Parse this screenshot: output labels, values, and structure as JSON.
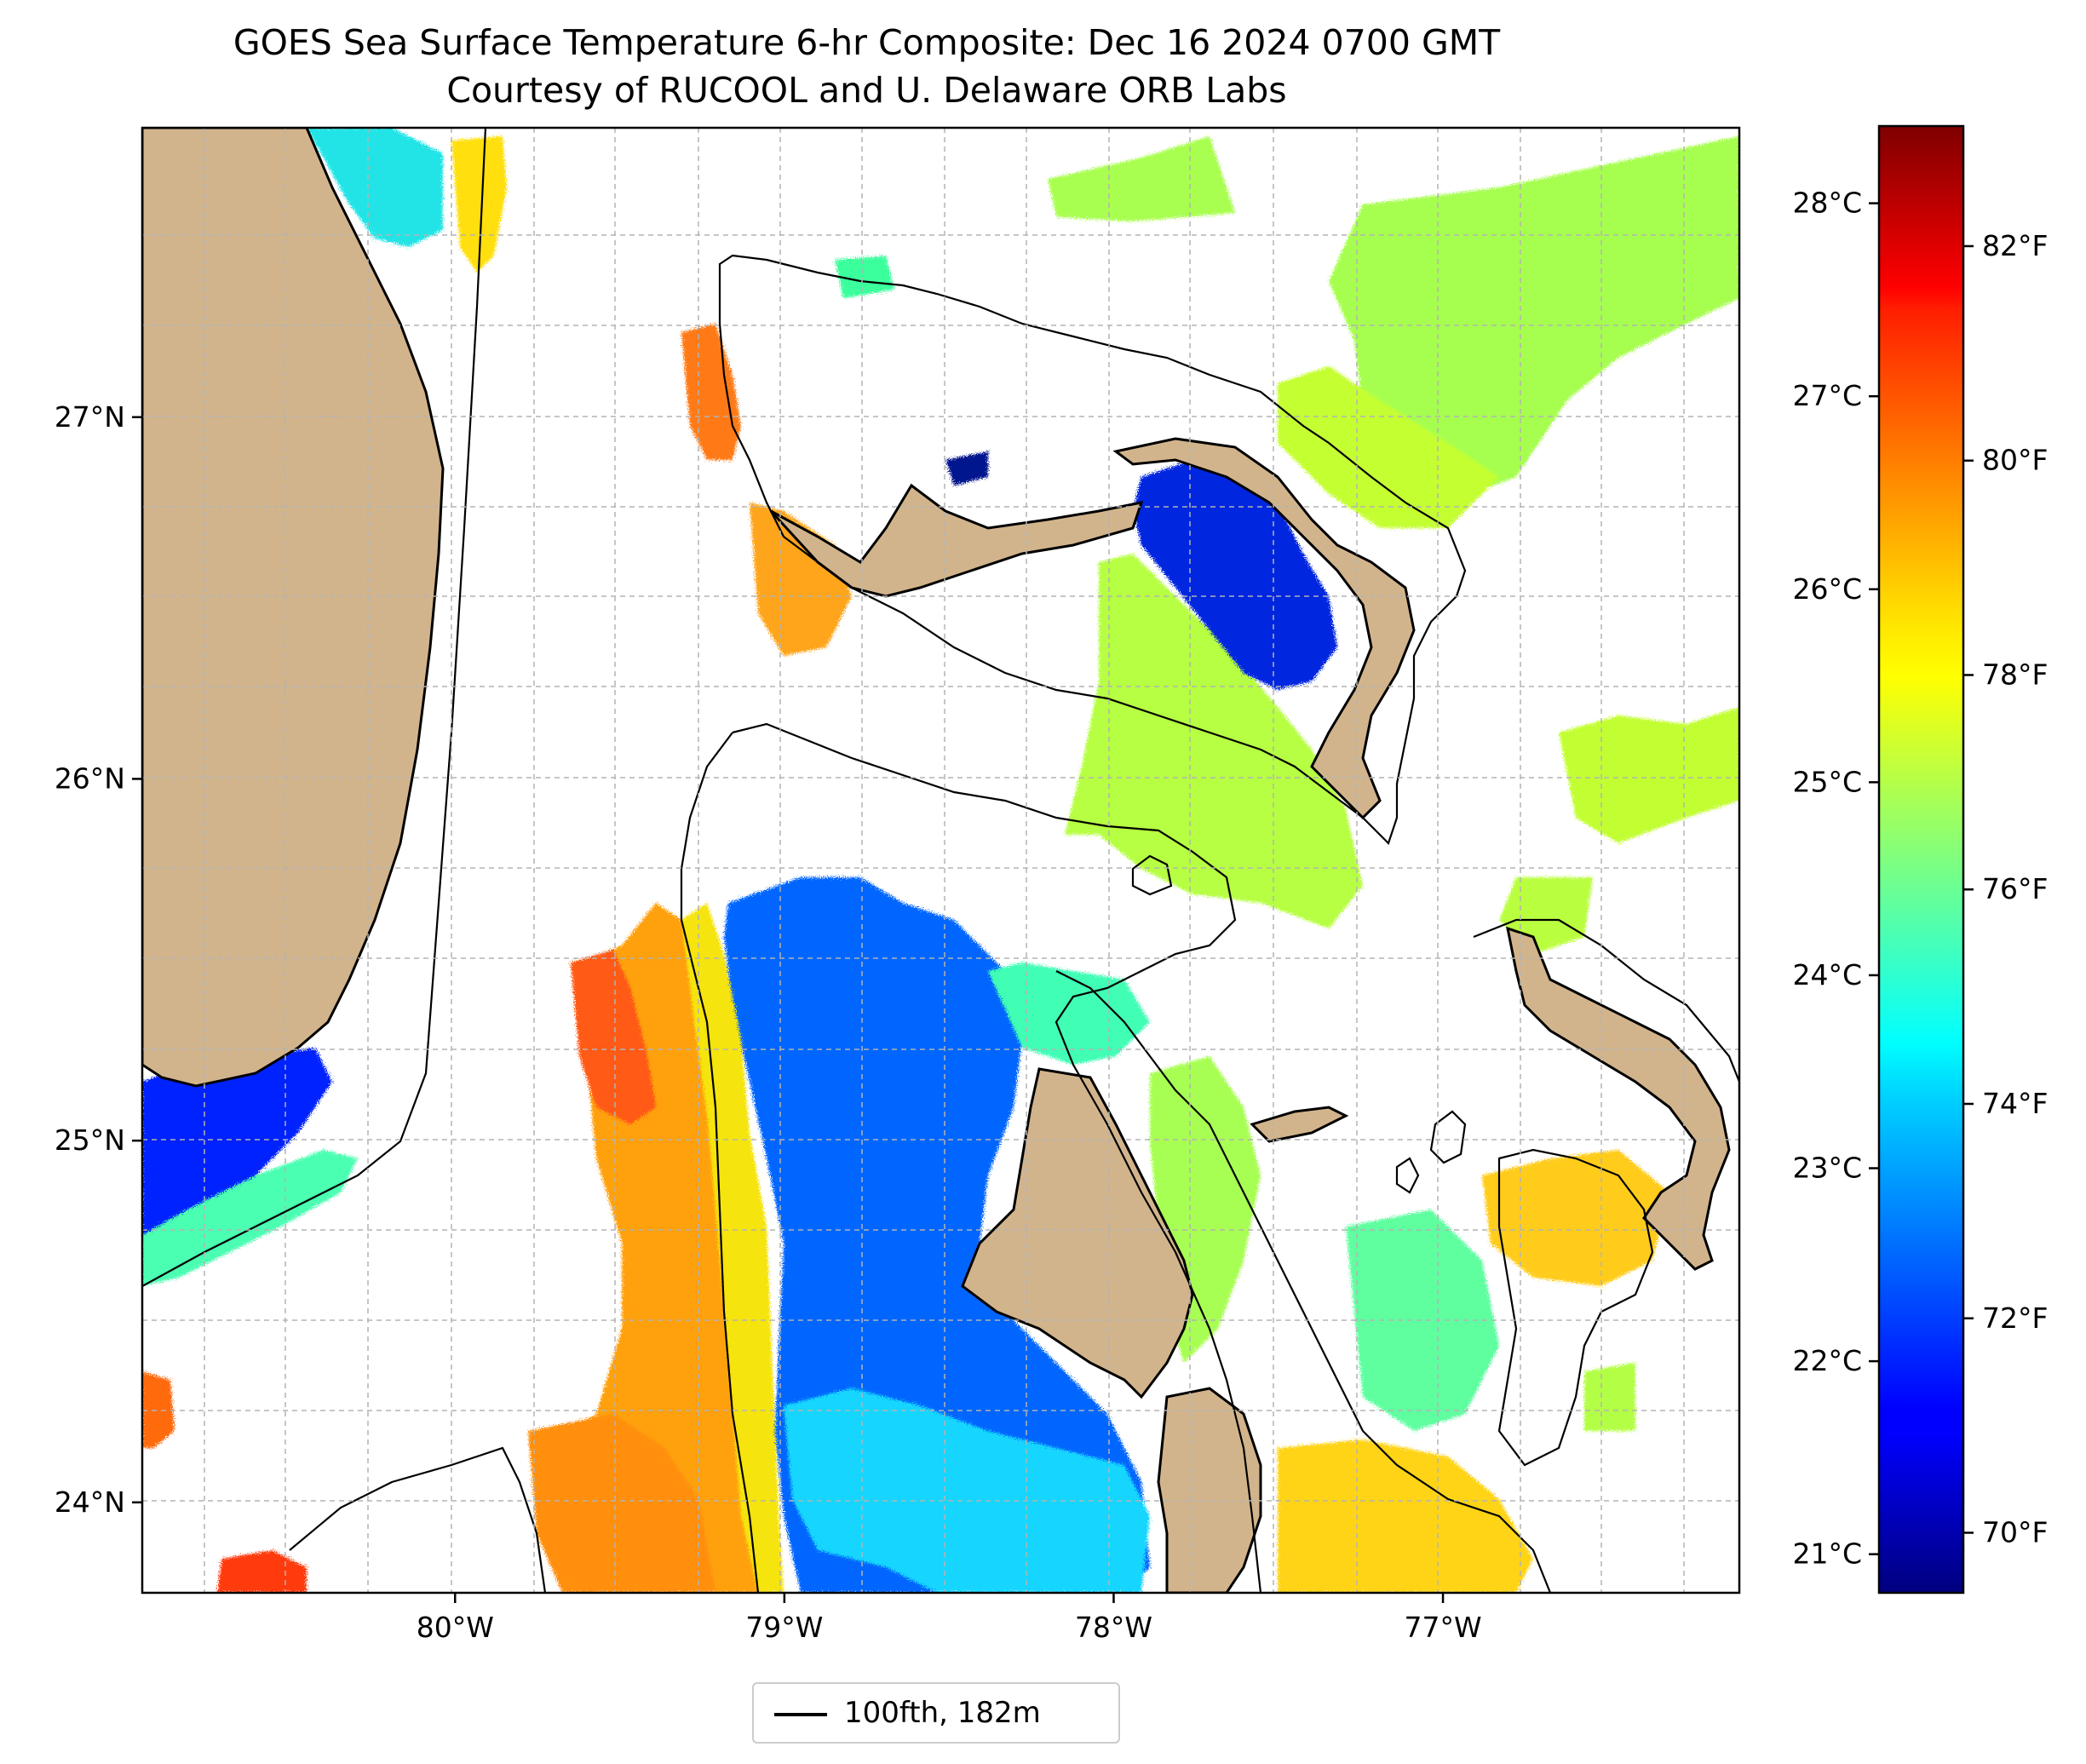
{
  "title": {
    "line1": "GOES Sea Surface Temperature 6-hr Composite: Dec 16 2024 0700 GMT",
    "line2": "Courtesy of RUCOOL and U. Delaware ORB Labs"
  },
  "map": {
    "lat_range": [
      23.75,
      27.8
    ],
    "lon_range": [
      -80.95,
      -76.1
    ],
    "lat_labels": [
      {
        "value": 27,
        "text": "27°N"
      },
      {
        "value": 26,
        "text": "26°N"
      },
      {
        "value": 25,
        "text": "25°N"
      },
      {
        "value": 24,
        "text": "24°N"
      }
    ],
    "lon_labels": [
      {
        "value": -80,
        "text": "80°W"
      },
      {
        "value": -79,
        "text": "79°W"
      },
      {
        "value": -78,
        "text": "78°W"
      },
      {
        "value": -77,
        "text": "77°W"
      }
    ],
    "land_color": "#d2b48c",
    "grid": true
  },
  "colorbar": {
    "colormap": "jet",
    "celsius_range": [
      20.8,
      28.4
    ],
    "celsius_labels": [
      {
        "value": 28,
        "text": "28°C"
      },
      {
        "value": 27,
        "text": "27°C"
      },
      {
        "value": 26,
        "text": "26°C"
      },
      {
        "value": 25,
        "text": "25°C"
      },
      {
        "value": 24,
        "text": "24°C"
      },
      {
        "value": 23,
        "text": "23°C"
      },
      {
        "value": 22,
        "text": "22°C"
      },
      {
        "value": 21,
        "text": "21°C"
      }
    ],
    "fahrenheit_labels": [
      {
        "value": 82,
        "text": "82°F"
      },
      {
        "value": 80,
        "text": "80°F"
      },
      {
        "value": 78,
        "text": "78°F"
      },
      {
        "value": 76,
        "text": "76°F"
      },
      {
        "value": 74,
        "text": "74°F"
      },
      {
        "value": 72,
        "text": "72°F"
      },
      {
        "value": 70,
        "text": "70°F"
      }
    ]
  },
  "legend": {
    "label": "100fth, 182m"
  }
}
